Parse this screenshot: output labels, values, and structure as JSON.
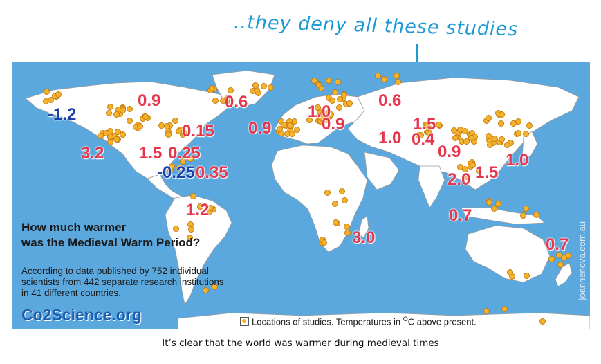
{
  "annotation": {
    "text": "..they deny all these studies"
  },
  "map": {
    "headline_line1": "How much warmer",
    "headline_line2": "was the Medieval Warm Period?",
    "desc_line1": "According to data published by 752 individual",
    "desc_line2": "scientists from 442 separate research institutions",
    "desc_line3": "in 41 different countries.",
    "brand": "Co2Science.org",
    "legend_text": "Locations of studies. Temperatures in ",
    "legend_unit_sup": "O",
    "legend_unit_rest": "C above present.",
    "watermark": "joannenova.com.au",
    "colors": {
      "ocean": "#5aa8de",
      "land": "#ffffff",
      "positive": "#e6364d",
      "negative": "#1c3fa8",
      "dot": "#f5b32d"
    },
    "temperatures": [
      {
        "label": "0.9",
        "region": "north-canada",
        "negative": false
      },
      {
        "label": "0.6",
        "region": "greenland",
        "negative": false
      },
      {
        "label": "-1.2",
        "region": "alaska",
        "negative": true
      },
      {
        "label": "0.15",
        "region": "east-north-america",
        "negative": false
      },
      {
        "label": "3.2",
        "region": "west-us",
        "negative": false
      },
      {
        "label": "1.5",
        "region": "central-us",
        "negative": false
      },
      {
        "label": "0.25",
        "region": "south-us",
        "negative": false
      },
      {
        "label": "-0.25",
        "region": "caribbean",
        "negative": true
      },
      {
        "label": "0.35",
        "region": "caribbean-east",
        "negative": false
      },
      {
        "label": "1.2",
        "region": "south-america",
        "negative": false
      },
      {
        "label": "0.9",
        "region": "western-europe",
        "negative": false
      },
      {
        "label": "1.0",
        "region": "central-europe",
        "negative": false
      },
      {
        "label": "0.9",
        "region": "eastern-europe",
        "negative": false
      },
      {
        "label": "0.6",
        "region": "russia",
        "negative": false
      },
      {
        "label": "1.5",
        "region": "central-asia",
        "negative": false
      },
      {
        "label": "1.0",
        "region": "middle-east",
        "negative": false
      },
      {
        "label": "0.4",
        "region": "himalaya",
        "negative": false
      },
      {
        "label": "0.9",
        "region": "china",
        "negative": false
      },
      {
        "label": "1.0",
        "region": "japan",
        "negative": false
      },
      {
        "label": "2.0",
        "region": "southeast-asia",
        "negative": false
      },
      {
        "label": "1.5",
        "region": "south-china-sea",
        "negative": false
      },
      {
        "label": "0.7",
        "region": "indonesia",
        "negative": false
      },
      {
        "label": "3.0",
        "region": "southern-africa",
        "negative": false
      },
      {
        "label": "0.7",
        "region": "new-zealand",
        "negative": false
      }
    ]
  },
  "caption": "It’s clear that the world was warmer during medieval times"
}
